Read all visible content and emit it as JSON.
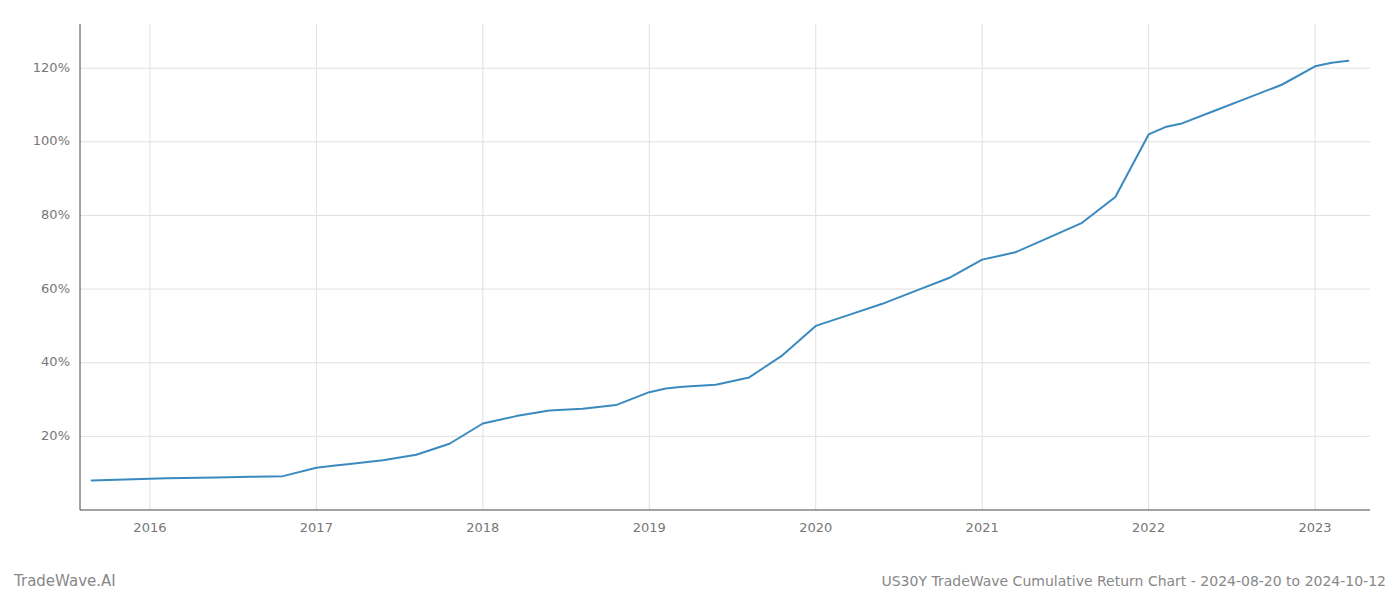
{
  "chart_data": {
    "type": "line",
    "title": "US30Y TradeWave Cumulative Return Chart - 2024-08-20 to 2024-10-12",
    "annotations": [
      "TradeWave.AI"
    ],
    "color": "#3a8abf",
    "x": [
      2015.65,
      2016.0,
      2016.1,
      2016.2,
      2016.4,
      2016.6,
      2016.8,
      2017.0,
      2017.1,
      2017.2,
      2017.4,
      2017.6,
      2017.8,
      2018.0,
      2018.2,
      2018.4,
      2018.6,
      2018.8,
      2019.0,
      2019.1,
      2019.2,
      2019.4,
      2019.6,
      2019.8,
      2020.0,
      2020.2,
      2020.4,
      2020.6,
      2020.8,
      2021.0,
      2021.1,
      2021.2,
      2021.4,
      2021.6,
      2021.8,
      2022.0,
      2022.1,
      2022.2,
      2022.4,
      2022.6,
      2022.8,
      2023.0,
      2023.1,
      2023.2
    ],
    "values": [
      8.0,
      8.5,
      8.6,
      8.7,
      8.8,
      9.0,
      9.2,
      11.5,
      12.0,
      12.5,
      13.5,
      15.0,
      18.0,
      23.5,
      25.5,
      27.0,
      27.5,
      28.5,
      32.0,
      33.0,
      33.5,
      34.0,
      36.0,
      42.0,
      50.0,
      53.0,
      56.0,
      59.5,
      63.0,
      68.0,
      69.0,
      70.0,
      74.0,
      78.0,
      85.0,
      102.0,
      104.0,
      105.0,
      108.5,
      112.0,
      115.5,
      120.5,
      121.5,
      122.0
    ],
    "xlim": [
      2015.58,
      2023.33
    ],
    "ylim": [
      0,
      132
    ],
    "xticks": [
      2016,
      2017,
      2018,
      2019,
      2020,
      2021,
      2022,
      2023
    ],
    "yticks": [
      {
        "value": 20,
        "label": "20%"
      },
      {
        "value": 40,
        "label": "40%"
      },
      {
        "value": 60,
        "label": "60%"
      },
      {
        "value": 80,
        "label": "80%"
      },
      {
        "value": 100,
        "label": "100%"
      },
      {
        "value": 120,
        "label": "120%"
      }
    ],
    "grid": true
  }
}
